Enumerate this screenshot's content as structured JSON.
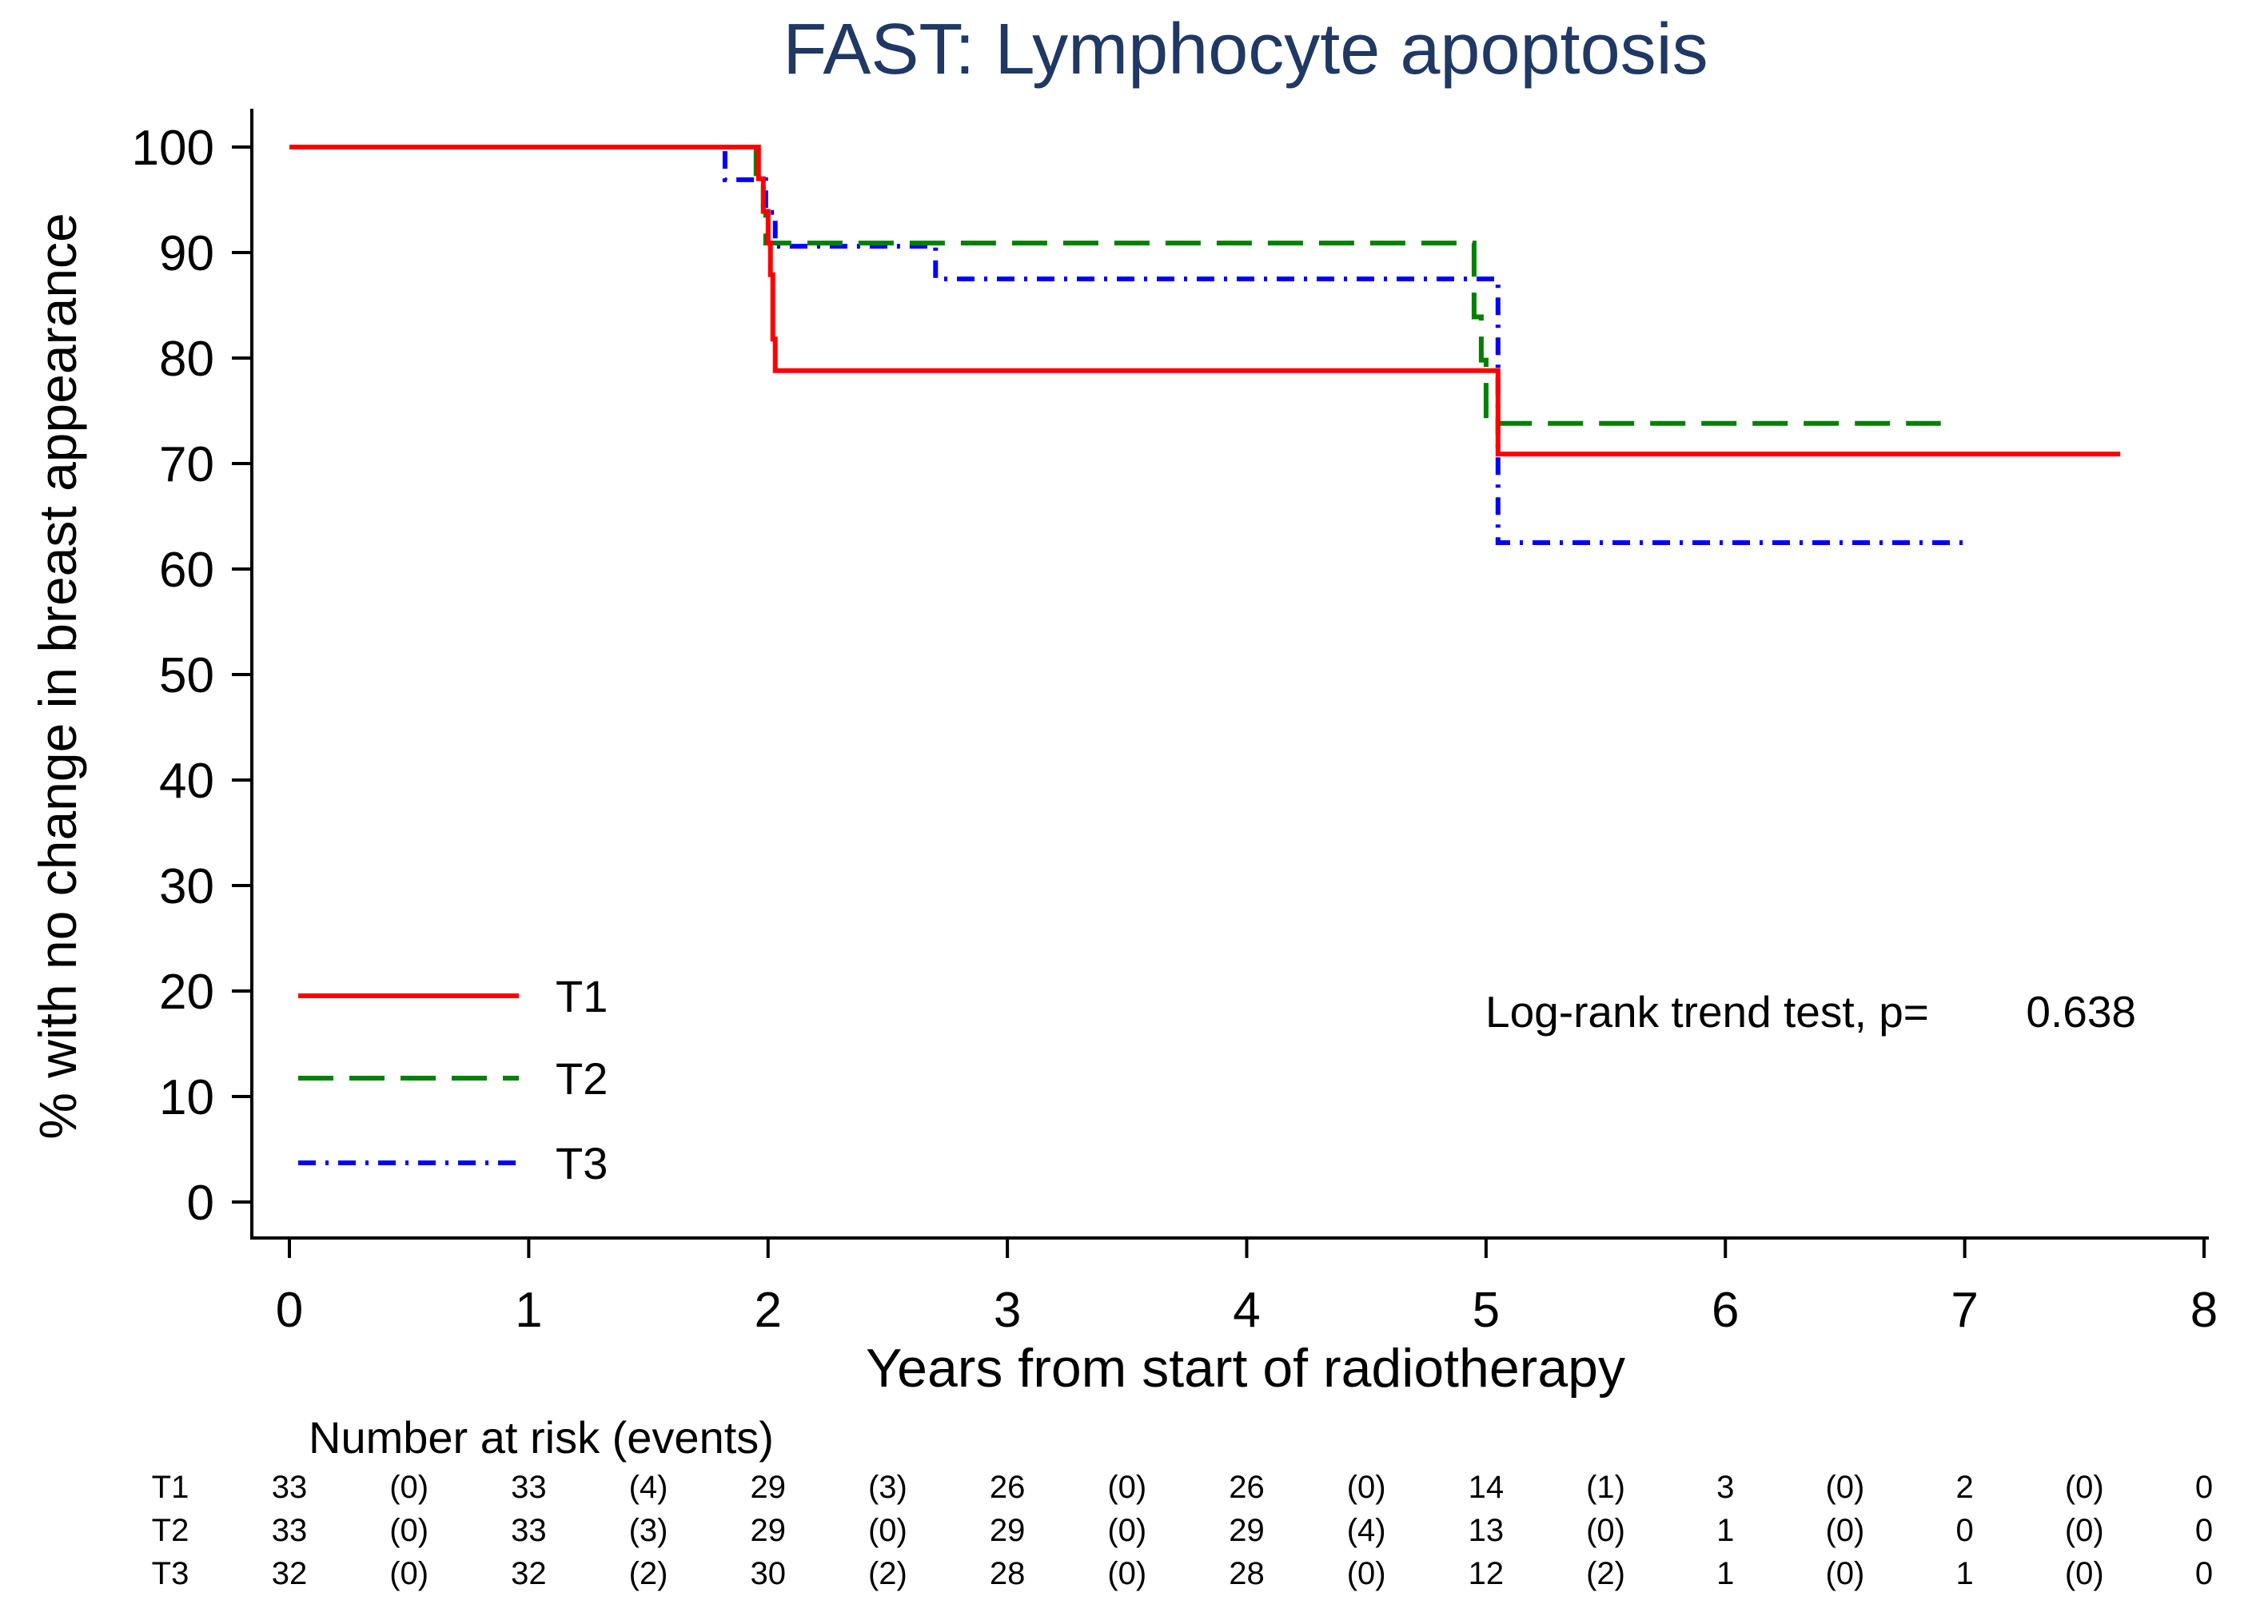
{
  "chart_data": {
    "type": "line",
    "subtype": "kaplan-meier step",
    "title": "FAST: Lymphocyte apoptosis",
    "xlabel": "Years from start of radiotherapy",
    "ylabel": "% with no change in breast appearance",
    "xlim": [
      0,
      8
    ],
    "ylim": [
      0,
      100
    ],
    "xticks": [
      "0",
      "1",
      "2",
      "3",
      "4",
      "5",
      "6",
      "7",
      "8"
    ],
    "yticks": [
      "0",
      "10",
      "20",
      "30",
      "40",
      "50",
      "60",
      "70",
      "80",
      "90",
      "100"
    ],
    "grid": false,
    "legend_position": "bottom-left",
    "colors": {
      "title": "#1f3864",
      "T1": "#ff0000",
      "T2": "#008000",
      "T3": "#0000ff"
    },
    "series": [
      {
        "name": "T1",
        "style": "solid",
        "points": [
          [
            0,
            100
          ],
          [
            1.96,
            100
          ],
          [
            1.96,
            97.0
          ],
          [
            1.98,
            97.0
          ],
          [
            1.98,
            93.9
          ],
          [
            2.0,
            93.9
          ],
          [
            2.0,
            90.9
          ],
          [
            2.01,
            90.9
          ],
          [
            2.01,
            87.9
          ],
          [
            2.02,
            87.9
          ],
          [
            2.02,
            84.8
          ],
          [
            2.02,
            84.8
          ],
          [
            2.02,
            81.8
          ],
          [
            2.03,
            81.8
          ],
          [
            2.03,
            78.8
          ],
          [
            5.05,
            78.8
          ],
          [
            5.05,
            70.9
          ],
          [
            7.65,
            70.9
          ]
        ]
      },
      {
        "name": "T2",
        "style": "dashed",
        "points": [
          [
            0,
            100
          ],
          [
            1.95,
            100
          ],
          [
            1.95,
            97.0
          ],
          [
            1.98,
            97.0
          ],
          [
            1.98,
            93.9
          ],
          [
            1.99,
            93.9
          ],
          [
            1.99,
            90.9
          ],
          [
            4.95,
            90.9
          ],
          [
            4.95,
            83.9
          ],
          [
            4.98,
            83.9
          ],
          [
            4.98,
            79.8
          ],
          [
            5.0,
            79.8
          ],
          [
            5.0,
            73.8
          ],
          [
            6.9,
            73.8
          ]
        ]
      },
      {
        "name": "T3",
        "style": "dash-dot",
        "points": [
          [
            0,
            100
          ],
          [
            1.82,
            100
          ],
          [
            1.82,
            96.9
          ],
          [
            1.99,
            96.9
          ],
          [
            1.99,
            93.8
          ],
          [
            2.03,
            93.8
          ],
          [
            2.03,
            90.6
          ],
          [
            2.7,
            90.6
          ],
          [
            2.7,
            87.5
          ],
          [
            5.05,
            87.5
          ],
          [
            5.05,
            62.5
          ],
          [
            7.0,
            62.5
          ]
        ]
      }
    ],
    "annotation": {
      "label": "Log-rank trend test, p=",
      "value": "0.638"
    },
    "risk_table": {
      "title": "Number at risk (events)",
      "rows": [
        {
          "label": "T1",
          "cells": [
            "33",
            "(0)",
            "33",
            "(4)",
            "29",
            "(3)",
            "26",
            "(0)",
            "26",
            "(0)",
            "14",
            "(1)",
            "3",
            "(0)",
            "2",
            "(0)",
            "0"
          ]
        },
        {
          "label": "T2",
          "cells": [
            "33",
            "(0)",
            "33",
            "(3)",
            "29",
            "(0)",
            "29",
            "(0)",
            "29",
            "(4)",
            "13",
            "(0)",
            "1",
            "(0)",
            "0",
            "(0)",
            "0"
          ]
        },
        {
          "label": "T3",
          "cells": [
            "32",
            "(0)",
            "32",
            "(2)",
            "30",
            "(2)",
            "28",
            "(0)",
            "28",
            "(0)",
            "12",
            "(2)",
            "1",
            "(0)",
            "1",
            "(0)",
            "0"
          ]
        }
      ]
    }
  }
}
